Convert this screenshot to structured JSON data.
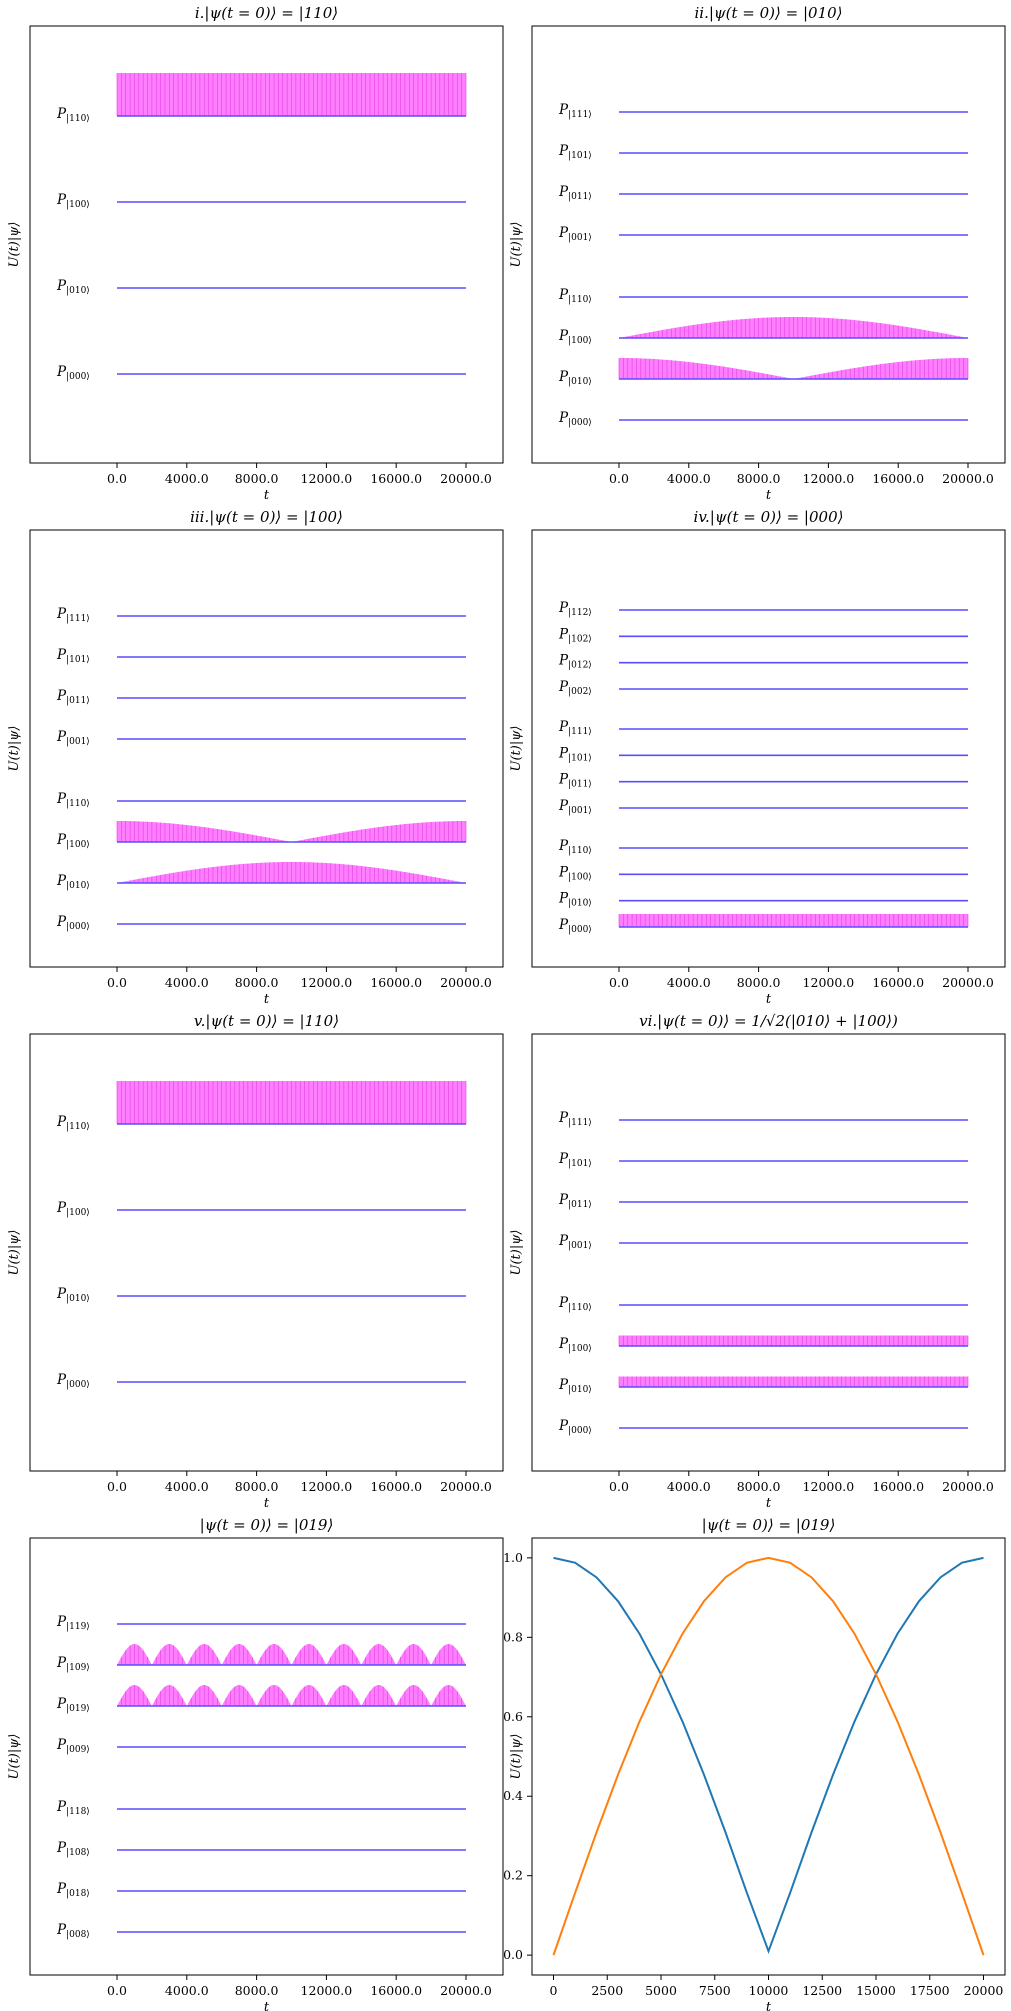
{
  "figure": {
    "ylabel": "U(t)|ψ⟩",
    "xlabel": "t"
  },
  "chart_data": [
    {
      "type": "line",
      "title": "i.|ψ(t = 0)⟩ = |110⟩",
      "xlabel": "t",
      "ylabel": "U(t)|ψ⟩",
      "xlim": [
        0,
        20000
      ],
      "xticks": [
        "0.0",
        "4000.0",
        "8000.0",
        "12000.0",
        "16000.0",
        "20000.0"
      ],
      "levels": [
        {
          "label": "P",
          "sub": "|110⟩",
          "fill": "const",
          "amp": 1.0
        },
        {
          "label": "P",
          "sub": "|100⟩",
          "fill": "none"
        },
        {
          "label": "P",
          "sub": "|010⟩",
          "fill": "none"
        },
        {
          "label": "P",
          "sub": "|000⟩",
          "fill": "none"
        }
      ]
    },
    {
      "type": "line",
      "title": "ii.|ψ(t = 0)⟩ = |010⟩",
      "xlabel": "t",
      "ylabel": "U(t)|ψ⟩",
      "xlim": [
        0,
        20000
      ],
      "xticks": [
        "0.0",
        "4000.0",
        "8000.0",
        "12000.0",
        "16000.0",
        "20000.0"
      ],
      "levels": [
        {
          "label": "P",
          "sub": "|111⟩",
          "fill": "none"
        },
        {
          "label": "P",
          "sub": "|101⟩",
          "fill": "none"
        },
        {
          "label": "P",
          "sub": "|011⟩",
          "fill": "none"
        },
        {
          "label": "P",
          "sub": "|001⟩",
          "fill": "none",
          "gap_after": true
        },
        {
          "label": "P",
          "sub": "|110⟩",
          "fill": "none"
        },
        {
          "label": "P",
          "sub": "|100⟩",
          "fill": "sin",
          "amp": 1.0
        },
        {
          "label": "P",
          "sub": "|010⟩",
          "fill": "cos",
          "amp": 1.0
        },
        {
          "label": "P",
          "sub": "|000⟩",
          "fill": "none"
        }
      ]
    },
    {
      "type": "line",
      "title": "iii.|ψ(t = 0)⟩ = |100⟩",
      "xlabel": "t",
      "ylabel": "U(t)|ψ⟩",
      "xlim": [
        0,
        20000
      ],
      "xticks": [
        "0.0",
        "4000.0",
        "8000.0",
        "12000.0",
        "16000.0",
        "20000.0"
      ],
      "levels": [
        {
          "label": "P",
          "sub": "|111⟩",
          "fill": "none"
        },
        {
          "label": "P",
          "sub": "|101⟩",
          "fill": "none"
        },
        {
          "label": "P",
          "sub": "|011⟩",
          "fill": "none"
        },
        {
          "label": "P",
          "sub": "|001⟩",
          "fill": "none",
          "gap_after": true
        },
        {
          "label": "P",
          "sub": "|110⟩",
          "fill": "none"
        },
        {
          "label": "P",
          "sub": "|100⟩",
          "fill": "cos",
          "amp": 1.0
        },
        {
          "label": "P",
          "sub": "|010⟩",
          "fill": "sin",
          "amp": 1.0
        },
        {
          "label": "P",
          "sub": "|000⟩",
          "fill": "none"
        }
      ]
    },
    {
      "type": "line",
      "title": "iv.|ψ(t = 0)⟩ = |000⟩",
      "xlabel": "t",
      "ylabel": "U(t)|ψ⟩",
      "xlim": [
        0,
        20000
      ],
      "xticks": [
        "0.0",
        "4000.0",
        "8000.0",
        "12000.0",
        "16000.0",
        "20000.0"
      ],
      "levels": [
        {
          "label": "P",
          "sub": "|112⟩",
          "fill": "none"
        },
        {
          "label": "P",
          "sub": "|102⟩",
          "fill": "none"
        },
        {
          "label": "P",
          "sub": "|012⟩",
          "fill": "none"
        },
        {
          "label": "P",
          "sub": "|002⟩",
          "fill": "none",
          "gap_after": true
        },
        {
          "label": "P",
          "sub": "|111⟩",
          "fill": "none"
        },
        {
          "label": "P",
          "sub": "|101⟩",
          "fill": "none"
        },
        {
          "label": "P",
          "sub": "|011⟩",
          "fill": "none"
        },
        {
          "label": "P",
          "sub": "|001⟩",
          "fill": "none",
          "gap_after": true
        },
        {
          "label": "P",
          "sub": "|110⟩",
          "fill": "none"
        },
        {
          "label": "P",
          "sub": "|100⟩",
          "fill": "none"
        },
        {
          "label": "P",
          "sub": "|010⟩",
          "fill": "none"
        },
        {
          "label": "P",
          "sub": "|000⟩",
          "fill": "const",
          "amp": 1.0
        }
      ]
    },
    {
      "type": "line",
      "title": "v.|ψ(t = 0)⟩ = |110⟩",
      "xlabel": "t",
      "ylabel": "U(t)|ψ⟩",
      "xlim": [
        0,
        20000
      ],
      "xticks": [
        "0.0",
        "4000.0",
        "8000.0",
        "12000.0",
        "16000.0",
        "20000.0"
      ],
      "levels": [
        {
          "label": "P",
          "sub": "|110⟩",
          "fill": "const",
          "amp": 1.0
        },
        {
          "label": "P",
          "sub": "|100⟩",
          "fill": "none"
        },
        {
          "label": "P",
          "sub": "|010⟩",
          "fill": "none"
        },
        {
          "label": "P",
          "sub": "|000⟩",
          "fill": "none"
        }
      ]
    },
    {
      "type": "line",
      "title": "vi.|ψ(t = 0)⟩ = 1/√2(|010⟩ + |100⟩)",
      "xlabel": "t",
      "ylabel": "U(t)|ψ⟩",
      "xlim": [
        0,
        20000
      ],
      "xticks": [
        "0.0",
        "4000.0",
        "8000.0",
        "12000.0",
        "16000.0",
        "20000.0"
      ],
      "levels": [
        {
          "label": "P",
          "sub": "|111⟩",
          "fill": "none"
        },
        {
          "label": "P",
          "sub": "|101⟩",
          "fill": "none"
        },
        {
          "label": "P",
          "sub": "|011⟩",
          "fill": "none"
        },
        {
          "label": "P",
          "sub": "|001⟩",
          "fill": "none",
          "gap_after": true
        },
        {
          "label": "P",
          "sub": "|110⟩",
          "fill": "none"
        },
        {
          "label": "P",
          "sub": "|100⟩",
          "fill": "const",
          "amp": 0.5
        },
        {
          "label": "P",
          "sub": "|010⟩",
          "fill": "const",
          "amp": 0.5
        },
        {
          "label": "P",
          "sub": "|000⟩",
          "fill": "none"
        }
      ]
    },
    {
      "type": "line",
      "title": "|ψ(t = 0)⟩ = |019⟩",
      "xlabel": "t",
      "ylabel": "U(t)|ψ⟩",
      "xlim": [
        0,
        20000
      ],
      "xticks": [
        "0.0",
        "4000.0",
        "8000.0",
        "12000.0",
        "16000.0",
        "20000.0"
      ],
      "levels": [
        {
          "label": "P",
          "sub": "|119⟩",
          "fill": "none"
        },
        {
          "label": "P",
          "sub": "|109⟩",
          "fill": "osc",
          "amp": 1.0,
          "cycles": 10
        },
        {
          "label": "P",
          "sub": "|019⟩",
          "fill": "osc",
          "amp": 1.0,
          "cycles": 10
        },
        {
          "label": "P",
          "sub": "|009⟩",
          "fill": "none",
          "gap_after": true
        },
        {
          "label": "P",
          "sub": "|118⟩",
          "fill": "none"
        },
        {
          "label": "P",
          "sub": "|108⟩",
          "fill": "none"
        },
        {
          "label": "P",
          "sub": "|018⟩",
          "fill": "none"
        },
        {
          "label": "P",
          "sub": "|008⟩",
          "fill": "none"
        }
      ]
    },
    {
      "type": "line",
      "title": "|ψ(t = 0)⟩ = |019⟩",
      "xlabel": "t",
      "ylabel": "U(t)|ψ⟩",
      "xlim": [
        -1000,
        21000
      ],
      "ylim": [
        -0.05,
        1.05
      ],
      "xticks": [
        0,
        2500,
        5000,
        7500,
        10000,
        12500,
        15000,
        17500,
        20000
      ],
      "yticks": [
        0.0,
        0.2,
        0.4,
        0.6,
        0.8,
        1.0
      ],
      "x": [
        0,
        1000,
        2000,
        3000,
        4000,
        5000,
        6000,
        7000,
        8000,
        9000,
        10000,
        11000,
        12000,
        13000,
        14000,
        15000,
        16000,
        17000,
        18000,
        19000,
        20000
      ],
      "series": [
        {
          "color": "#1f77b4",
          "values": [
            1.0,
            0.988,
            0.951,
            0.891,
            0.809,
            0.707,
            0.588,
            0.454,
            0.309,
            0.156,
            0.01,
            0.156,
            0.309,
            0.454,
            0.588,
            0.707,
            0.809,
            0.891,
            0.951,
            0.988,
            1.0
          ]
        },
        {
          "color": "#ff7f0e",
          "values": [
            0.0,
            0.156,
            0.309,
            0.454,
            0.588,
            0.707,
            0.809,
            0.891,
            0.951,
            0.988,
            1.0,
            0.988,
            0.951,
            0.891,
            0.809,
            0.707,
            0.588,
            0.454,
            0.309,
            0.156,
            0.0
          ]
        }
      ]
    }
  ],
  "colors": {
    "level_line": "#5a4cff",
    "fill": "#ff66ff",
    "fill_stripe": "#e040e0",
    "frame": "#000000"
  }
}
